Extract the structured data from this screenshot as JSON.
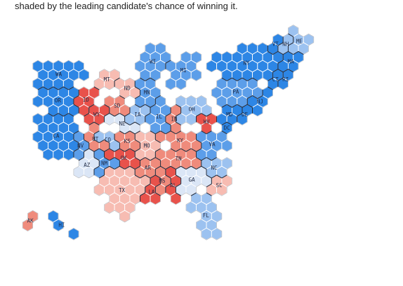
{
  "caption": "shaded by the leading candidate's chance of winning it.",
  "colors": {
    "safe_d": "#2d86e5",
    "likely_d": "#5c9ee9",
    "lean_d": "#9cc2f0",
    "tossup": "#dbe6f6",
    "lean_r": "#f7bcb2",
    "likely_r": "#ef8b7c",
    "safe_r": "#e8524b",
    "hex_stroke": "#ffffff",
    "border": "#1a2233"
  },
  "states": [
    {
      "abbr": "WA",
      "rating": "safe_d"
    },
    {
      "abbr": "OR",
      "rating": "safe_d"
    },
    {
      "abbr": "CA",
      "rating": "safe_d"
    },
    {
      "abbr": "NV",
      "rating": "likely_d"
    },
    {
      "abbr": "ID",
      "rating": "safe_r"
    },
    {
      "abbr": "MT",
      "rating": "lean_r"
    },
    {
      "abbr": "WY",
      "rating": "safe_r"
    },
    {
      "abbr": "UT",
      "rating": "likely_r"
    },
    {
      "abbr": "AZ",
      "rating": "tossup"
    },
    {
      "abbr": "CO",
      "rating": "lean_d"
    },
    {
      "abbr": "NM",
      "rating": "likely_d"
    },
    {
      "abbr": "ND",
      "rating": "lean_r"
    },
    {
      "abbr": "SD",
      "rating": "likely_r"
    },
    {
      "abbr": "NE",
      "rating": "tossup"
    },
    {
      "abbr": "KS",
      "rating": "likely_r"
    },
    {
      "abbr": "OK",
      "rating": "safe_r"
    },
    {
      "abbr": "TX",
      "rating": "lean_r"
    },
    {
      "abbr": "MN",
      "rating": "likely_d"
    },
    {
      "abbr": "IA",
      "rating": "lean_d"
    },
    {
      "abbr": "MO",
      "rating": "lean_r"
    },
    {
      "abbr": "AR",
      "rating": "likely_r"
    },
    {
      "abbr": "LA",
      "rating": "safe_r"
    },
    {
      "abbr": "WI",
      "rating": "likely_d"
    },
    {
      "abbr": "IL",
      "rating": "likely_d"
    },
    {
      "abbr": "MI",
      "rating": "likely_d"
    },
    {
      "abbr": "IN",
      "rating": "likely_r"
    },
    {
      "abbr": "KY",
      "rating": "likely_r"
    },
    {
      "abbr": "TN",
      "rating": "likely_r"
    },
    {
      "abbr": "MS",
      "rating": "likely_r"
    },
    {
      "abbr": "AL",
      "rating": "safe_r"
    },
    {
      "abbr": "OH",
      "rating": "lean_d"
    },
    {
      "abbr": "WV",
      "rating": "safe_r"
    },
    {
      "abbr": "VA",
      "rating": "likely_d"
    },
    {
      "abbr": "NC",
      "rating": "lean_d"
    },
    {
      "abbr": "SC",
      "rating": "lean_r"
    },
    {
      "abbr": "GA",
      "rating": "tossup"
    },
    {
      "abbr": "FL",
      "rating": "lean_d"
    },
    {
      "abbr": "PA",
      "rating": "likely_d"
    },
    {
      "abbr": "NY",
      "rating": "safe_d"
    },
    {
      "abbr": "NJ",
      "rating": "safe_d"
    },
    {
      "abbr": "DE",
      "rating": "safe_d"
    },
    {
      "abbr": "MD",
      "rating": "safe_d"
    },
    {
      "abbr": "DC",
      "rating": "safe_d"
    },
    {
      "abbr": "CT",
      "rating": "safe_d"
    },
    {
      "abbr": "RI",
      "rating": "safe_d"
    },
    {
      "abbr": "MA",
      "rating": "safe_d"
    },
    {
      "abbr": "VT",
      "rating": "safe_d"
    },
    {
      "abbr": "NH",
      "rating": "lean_d"
    },
    {
      "abbr": "ME",
      "rating": "lean_d"
    },
    {
      "abbr": "AK",
      "rating": "likely_r"
    },
    {
      "abbr": "HI",
      "rating": "safe_d"
    }
  ]
}
